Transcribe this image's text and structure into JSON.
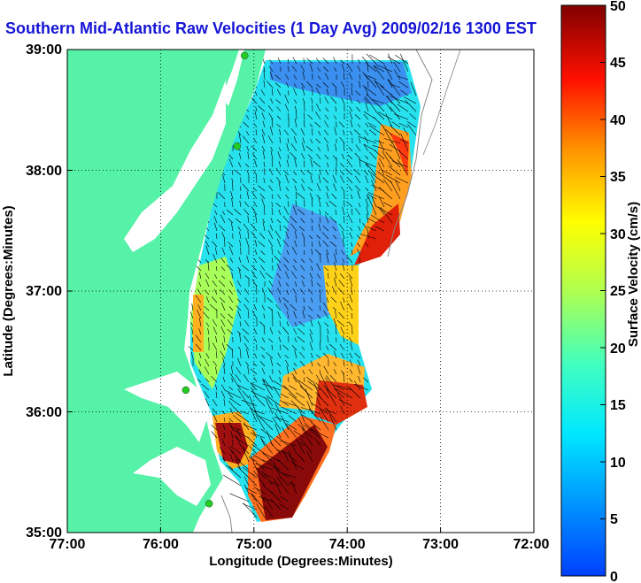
{
  "title": "Southern Mid-Atlantic Raw Velocities (1 Day Avg) 2009/02/16 1300 EST",
  "xlabel": "Longitude (Degrees:Minutes)",
  "ylabel": "Latitude (Degrees:Minutes)",
  "colorbar_label": "Surface Velocity (cm/s)",
  "x_ticks": [
    "77:00",
    "76:00",
    "75:00",
    "74:00",
    "73:00",
    "72:00"
  ],
  "y_ticks": [
    "39:00",
    "38:00",
    "37:00",
    "36:00",
    "35:00"
  ],
  "colorbar_ticks": [
    "50",
    "45",
    "40",
    "35",
    "30",
    "25",
    "20",
    "15",
    "10",
    "5",
    "0"
  ],
  "chart_data": {
    "type": "heatmap",
    "title": "Southern Mid-Atlantic Raw Velocities (1 Day Avg) 2009/02/16 1300 EST",
    "xlabel": "Longitude (Degrees:Minutes)",
    "ylabel": "Latitude (Degrees:Minutes)",
    "xlim": [
      -77,
      -72
    ],
    "ylim": [
      35,
      39
    ],
    "colorbar": {
      "label": "Surface Velocity (cm/s)",
      "range": [
        0,
        50
      ],
      "colormap": "jet"
    },
    "grid": true,
    "land_color": "#55f2a8",
    "vector_color": "#000000",
    "station_color": "#22cc22",
    "stations": [
      {
        "lon": -75.1,
        "lat": 38.95
      },
      {
        "lon": -75.18,
        "lat": 38.2
      },
      {
        "lon": -75.73,
        "lat": 36.18
      },
      {
        "lon": -75.48,
        "lat": 35.24
      }
    ]
  }
}
